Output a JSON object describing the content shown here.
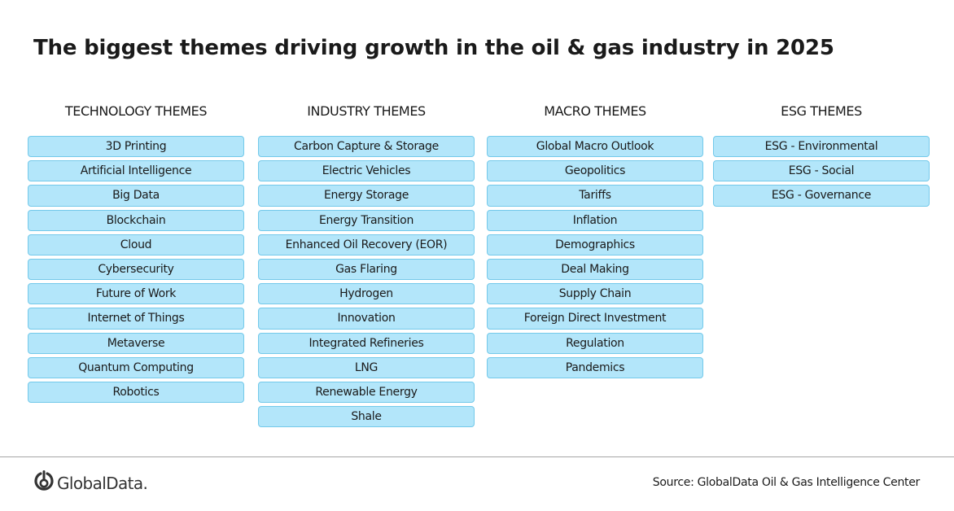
{
  "title": "The biggest themes driving growth in the oil & gas industry in 2025",
  "columns": [
    {
      "header": "TECHNOLOGY THEMES",
      "items": [
        "3D Printing",
        "Artificial Intelligence",
        "Big Data",
        "Blockchain",
        "Cloud",
        "Cybersecurity",
        "Future of Work",
        "Internet of Things",
        "Metaverse",
        "Quantum Computing",
        "Robotics"
      ]
    },
    {
      "header": "INDUSTRY THEMES",
      "items": [
        "Carbon Capture & Storage",
        "Electric Vehicles",
        "Energy Storage",
        "Energy Transition",
        "Enhanced Oil Recovery (EOR)",
        "Gas Flaring",
        "Hydrogen",
        "Innovation",
        "Integrated Refineries",
        "LNG",
        "Renewable Energy",
        "Shale"
      ]
    },
    {
      "header": "MACRO THEMES",
      "items": [
        "Global Macro Outlook",
        "Geopolitics",
        "Tariffs",
        "Inflation",
        "Demographics",
        "Deal Making",
        "Supply Chain",
        "Foreign Direct Investment",
        "Regulation",
        "Pandemics"
      ]
    },
    {
      "header": "ESG THEMES",
      "items": [
        "ESG - Environmental",
        "ESG - Social",
        "ESG - Governance"
      ]
    }
  ],
  "footer": {
    "logo_text": "GlobalData.",
    "logo_icon": "globaldata-logo-icon",
    "source": "Source: GlobalData Oil & Gas Intelligence Center"
  },
  "colors": {
    "box_fill": "#b3e6fa",
    "box_border": "#73c9ea",
    "title_text": "#1a1a1a",
    "divider": "#a6a6a6"
  }
}
